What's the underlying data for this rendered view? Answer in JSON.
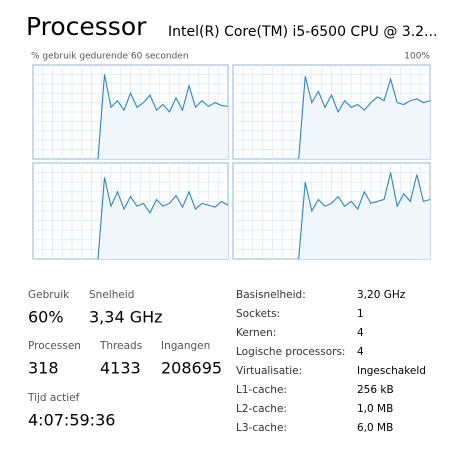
{
  "header": {
    "title": "Processor",
    "cpu_name": "Intel(R) Core(TM) i5-6500 CPU @ 3.2...",
    "graph_caption": "% gebruik gedurende 60 seconden",
    "graph_max": "100%"
  },
  "graphs": [
    {
      "values": [
        null,
        null,
        null,
        null,
        null,
        null,
        null,
        null,
        null,
        null,
        0,
        90,
        55,
        62,
        52,
        70,
        55,
        60,
        68,
        52,
        58,
        50,
        65,
        52,
        78,
        55,
        62,
        56,
        60,
        57,
        56
      ]
    },
    {
      "values": [
        null,
        null,
        null,
        null,
        null,
        null,
        null,
        null,
        null,
        null,
        0,
        88,
        60,
        72,
        55,
        68,
        50,
        62,
        55,
        58,
        52,
        60,
        66,
        62,
        85,
        60,
        58,
        62,
        64,
        60,
        62
      ]
    },
    {
      "values": [
        null,
        null,
        null,
        null,
        null,
        null,
        null,
        null,
        null,
        null,
        0,
        85,
        55,
        70,
        52,
        65,
        55,
        58,
        48,
        62,
        55,
        58,
        66,
        54,
        70,
        52,
        58,
        56,
        54,
        60,
        56
      ]
    },
    {
      "values": [
        null,
        null,
        null,
        null,
        null,
        null,
        null,
        null,
        null,
        null,
        0,
        80,
        50,
        62,
        55,
        58,
        65,
        55,
        60,
        52,
        70,
        58,
        60,
        62,
        90,
        55,
        68,
        60,
        88,
        60,
        62
      ]
    }
  ],
  "stats": [
    {
      "label": "Gebruik",
      "value": "60%"
    },
    {
      "label": "Snelheid",
      "value": "3,34 GHz"
    },
    {
      "label": "Processen",
      "value": "318"
    },
    {
      "label": "Threads",
      "value": "4133"
    },
    {
      "label": "Ingangen",
      "value": "208695"
    },
    {
      "label": "Tijd actief",
      "value": "4:07:59:36"
    }
  ],
  "details": [
    {
      "label": "Basisnelheid:",
      "value": "3,20 GHz"
    },
    {
      "label": "Sockets:",
      "value": "1"
    },
    {
      "label": "Kernen:",
      "value": "4"
    },
    {
      "label": "Logische processors:",
      "value": "4"
    },
    {
      "label": "Virtualisatie:",
      "value": "Ingeschakeld"
    },
    {
      "label": "L1-cache:",
      "value": "256 kB"
    },
    {
      "label": "L2-cache:",
      "value": "1,0 MB"
    },
    {
      "label": "L3-cache:",
      "value": "6,0 MB"
    }
  ]
}
